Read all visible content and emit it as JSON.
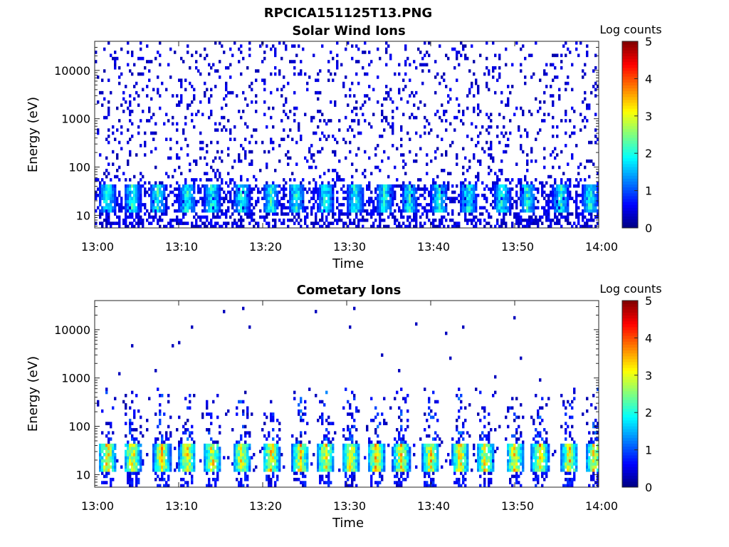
{
  "figure_title": "RPCICA151125T13.PNG",
  "chart_data": [
    {
      "type": "heatmap",
      "title": "Solar Wind Ions",
      "xlabel": "Time",
      "ylabel": "Energy (eV)",
      "x_tick_labels": [
        "13:00",
        "13:10",
        "13:20",
        "13:30",
        "13:40",
        "13:50",
        "14:00"
      ],
      "xlim": [
        "13:00",
        "14:00"
      ],
      "y_scale": "log",
      "y_tick_labels": [
        "10",
        "100",
        "1000",
        "10000"
      ],
      "ylim": [
        5.5,
        40000
      ],
      "colorbar": {
        "label": "Log counts",
        "ticks": [
          "0",
          "1",
          "2",
          "3",
          "4",
          "5"
        ],
        "range": [
          0,
          5
        ],
        "colormap": "jet"
      },
      "pulse_times_min": [
        1.5,
        4.5,
        7.5,
        11,
        14,
        17.5,
        21,
        24,
        27.5,
        31,
        34.5,
        37.5,
        41,
        44.5,
        48.5,
        51.5,
        55.5,
        59
      ],
      "peak_energy_ev": 25,
      "peak_log_counts": 2.0,
      "background_log_counts": 0.3
    },
    {
      "type": "heatmap",
      "title": "Cometary Ions",
      "xlabel": "Time",
      "ylabel": "Energy (eV)",
      "x_tick_labels": [
        "13:00",
        "13:10",
        "13:20",
        "13:30",
        "13:40",
        "13:50",
        "14:00"
      ],
      "xlim": [
        "13:00",
        "14:00"
      ],
      "y_scale": "log",
      "y_tick_labels": [
        "10",
        "100",
        "1000",
        "10000"
      ],
      "ylim": [
        5.5,
        40000
      ],
      "colorbar": {
        "label": "Log counts",
        "ticks": [
          "0",
          "1",
          "2",
          "3",
          "4",
          "5"
        ],
        "range": [
          0,
          5
        ],
        "colormap": "jet"
      },
      "pulse_times_min": [
        1.5,
        4.5,
        8,
        11,
        14,
        17.5,
        21,
        24.5,
        27.5,
        30.5,
        33.5,
        36.5,
        40,
        43.5,
        46.5,
        50,
        53,
        56.5,
        59.5
      ],
      "peak_energy_ev": 25,
      "peak_log_counts": 3.2,
      "background_log_counts": 0.2
    }
  ]
}
